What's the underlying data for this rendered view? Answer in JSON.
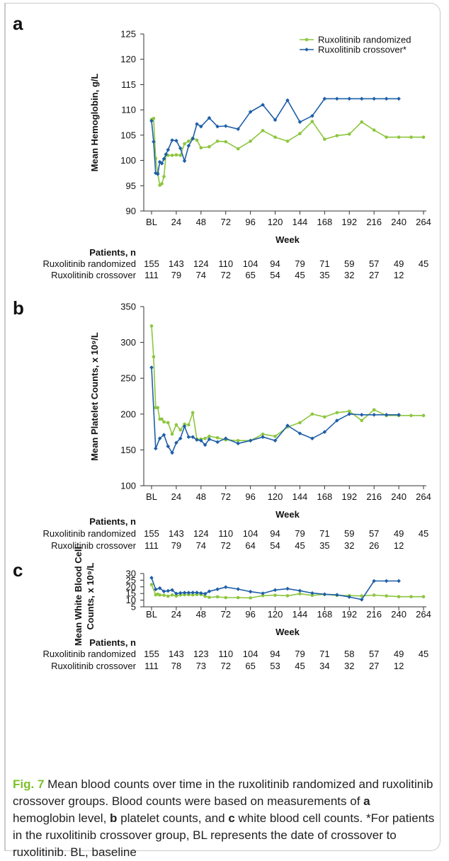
{
  "colors": {
    "randomized": "#8dc63f",
    "crossover": "#1f5fa8"
  },
  "legend": {
    "randomized": "Ruxolitinib randomized",
    "crossover": "Ruxolitinib crossover*"
  },
  "patients_heading": "Patients, n",
  "table_row_labels": [
    "Ruxolitinib randomized",
    "Ruxolitinib crossover"
  ],
  "chart_data": [
    {
      "panel": "a",
      "type": "line",
      "xlabel": "Week",
      "ylabel": "Mean Hemoglobin, g/L",
      "ylim": [
        90,
        125
      ],
      "yticks": [
        90,
        95,
        100,
        105,
        110,
        115,
        120,
        125
      ],
      "xlim": [
        0,
        264
      ],
      "xtick_labels": [
        "BL",
        "24",
        "48",
        "72",
        "96",
        "120",
        "144",
        "168",
        "192",
        "216",
        "240",
        "264"
      ],
      "legend_position": "top-right",
      "series": [
        {
          "name": "Ruxolitinib randomized",
          "x": [
            0,
            2,
            4,
            6,
            8,
            10,
            12,
            14,
            16,
            20,
            24,
            28,
            32,
            36,
            40,
            44,
            48,
            56,
            64,
            72,
            84,
            96,
            108,
            120,
            132,
            144,
            156,
            168,
            180,
            192,
            204,
            216,
            228,
            240,
            252,
            264
          ],
          "y": [
            108.1,
            108.3,
            100.4,
            97.5,
            95.1,
            95.4,
            96.8,
            101.2,
            101.0,
            101.0,
            101.1,
            101.0,
            103.3,
            103.8,
            104.4,
            104.0,
            102.5,
            102.7,
            103.8,
            103.7,
            102.3,
            103.8,
            105.9,
            104.6,
            103.8,
            105.3,
            107.7,
            104.2,
            104.9,
            105.2,
            107.6,
            106.0,
            104.6,
            104.6,
            104.6,
            104.6
          ]
        },
        {
          "name": "Ruxolitinib crossover*",
          "x": [
            0,
            2,
            4,
            6,
            8,
            10,
            12,
            14,
            16,
            20,
            24,
            28,
            32,
            36,
            40,
            44,
            48,
            56,
            64,
            72,
            84,
            96,
            108,
            120,
            132,
            144,
            156,
            168,
            180,
            192,
            204,
            216,
            228,
            240
          ],
          "y": [
            107.8,
            103.7,
            97.5,
            97.3,
            99.7,
            99.4,
            100.3,
            101.2,
            102.1,
            104.0,
            103.9,
            102.4,
            99.9,
            102.9,
            104.3,
            107.2,
            106.7,
            108.4,
            106.7,
            106.8,
            106.2,
            109.6,
            111.0,
            108.0,
            111.9,
            107.6,
            108.8,
            112.2,
            112.2,
            112.2,
            112.2,
            112.2,
            112.2,
            112.2
          ]
        }
      ],
      "patients": {
        "Ruxolitinib randomized": [
          "155",
          "143",
          "124",
          "110",
          "104",
          "94",
          "79",
          "71",
          "59",
          "57",
          "49",
          "45"
        ],
        "Ruxolitinib crossover": [
          "111",
          "79",
          "74",
          "72",
          "65",
          "54",
          "45",
          "35",
          "32",
          "27",
          "12",
          ""
        ]
      }
    },
    {
      "panel": "b",
      "type": "line",
      "xlabel": "Week",
      "ylabel": "Mean Platelet Counts, x 10⁹/L",
      "ylim": [
        100,
        350
      ],
      "yticks": [
        100,
        150,
        200,
        250,
        300,
        350
      ],
      "xlim": [
        0,
        264
      ],
      "xtick_labels": [
        "BL",
        "24",
        "48",
        "72",
        "96",
        "120",
        "144",
        "168",
        "192",
        "216",
        "240",
        "264"
      ],
      "series": [
        {
          "name": "Ruxolitinib randomized",
          "x": [
            0,
            2,
            4,
            6,
            8,
            10,
            12,
            16,
            20,
            24,
            28,
            32,
            36,
            40,
            44,
            48,
            52,
            56,
            64,
            72,
            84,
            96,
            108,
            120,
            132,
            144,
            156,
            168,
            180,
            192,
            204,
            216,
            228,
            240,
            252,
            264
          ],
          "y": [
            323,
            280,
            209,
            209,
            193,
            193,
            189,
            188,
            172,
            185,
            178,
            186,
            185,
            202,
            165,
            165,
            166,
            169,
            167,
            164,
            163,
            163,
            172,
            169,
            182,
            188,
            200,
            196,
            202,
            204,
            191,
            206,
            198,
            198,
            198,
            198
          ]
        },
        {
          "name": "Ruxolitinib crossover*",
          "x": [
            0,
            4,
            8,
            12,
            16,
            20,
            24,
            28,
            32,
            36,
            40,
            44,
            48,
            52,
            56,
            64,
            72,
            84,
            96,
            108,
            120,
            132,
            144,
            156,
            168,
            180,
            192,
            204,
            216,
            228,
            240
          ],
          "y": [
            265,
            152,
            166,
            171,
            155,
            146,
            160,
            166,
            183,
            168,
            168,
            164,
            163,
            157,
            165,
            161,
            166,
            159,
            163,
            168,
            163,
            184,
            173,
            166,
            175,
            191,
            200,
            199,
            199,
            199,
            199
          ]
        }
      ],
      "patients": {
        "Ruxolitinib randomized": [
          "155",
          "143",
          "124",
          "110",
          "104",
          "94",
          "79",
          "71",
          "59",
          "57",
          "49",
          "45"
        ],
        "Ruxolitinib crossover": [
          "111",
          "79",
          "74",
          "72",
          "64",
          "54",
          "45",
          "35",
          "32",
          "26",
          "12",
          ""
        ]
      }
    },
    {
      "panel": "c",
      "type": "line",
      "xlabel": "Week",
      "ylabel": "Mean White Blood Cell Counts, x 10⁹/L",
      "ylim": [
        5,
        30
      ],
      "yticks": [
        5,
        10,
        15,
        20,
        25,
        30
      ],
      "xlim": [
        0,
        264
      ],
      "xtick_labels": [
        "BL",
        "24",
        "48",
        "72",
        "96",
        "120",
        "144",
        "168",
        "192",
        "216",
        "240",
        "264"
      ],
      "series": [
        {
          "name": "Ruxolitinib randomized",
          "x": [
            0,
            4,
            6,
            8,
            12,
            16,
            20,
            24,
            28,
            32,
            36,
            40,
            44,
            48,
            52,
            56,
            64,
            72,
            84,
            96,
            108,
            120,
            132,
            144,
            156,
            168,
            180,
            192,
            204,
            216,
            228,
            240,
            252,
            264
          ],
          "y": [
            21.7,
            14.0,
            14.5,
            13.9,
            13.7,
            13.0,
            13.9,
            13.1,
            13.9,
            14.1,
            14.1,
            14.0,
            14.2,
            14.3,
            12.9,
            12.1,
            12.5,
            11.9,
            11.9,
            11.7,
            13.4,
            13.7,
            13.3,
            14.8,
            13.6,
            14.3,
            13.6,
            13.4,
            13.2,
            13.8,
            13.2,
            12.6,
            12.6,
            12.6
          ]
        },
        {
          "name": "Ruxolitinib crossover*",
          "x": [
            0,
            4,
            8,
            12,
            16,
            20,
            24,
            28,
            32,
            36,
            40,
            44,
            48,
            52,
            56,
            64,
            72,
            84,
            96,
            108,
            120,
            132,
            144,
            156,
            168,
            180,
            192,
            204,
            216,
            228,
            240
          ],
          "y": [
            26.8,
            18.1,
            19.0,
            16.6,
            17.0,
            17.6,
            14.9,
            15.4,
            15.6,
            15.6,
            15.7,
            15.7,
            15.3,
            14.8,
            16.6,
            18.2,
            19.8,
            18.3,
            16.4,
            15.1,
            17.6,
            18.6,
            17.1,
            15.3,
            14.4,
            14.0,
            12.4,
            10.4,
            24.4,
            24.4,
            24.4
          ]
        }
      ],
      "patients": {
        "Ruxolitinib randomized": [
          "155",
          "143",
          "123",
          "110",
          "104",
          "94",
          "79",
          "71",
          "58",
          "57",
          "49",
          "45"
        ],
        "Ruxolitinib crossover": [
          "111",
          "78",
          "73",
          "72",
          "65",
          "53",
          "45",
          "34",
          "32",
          "27",
          "12",
          ""
        ]
      }
    }
  ],
  "caption": {
    "fig_label": "Fig. 7",
    "parts": [
      " Mean blood counts over time in the ruxolitinib randomized and ruxolitinib crossover groups. Blood counts were based on measurements of ",
      "a",
      " hemoglobin level, ",
      "b",
      " platelet counts, and ",
      "c",
      " white blood cell counts. *For patients in the ruxolitinib crossover group, BL represents the date of crossover to ruxolitinib. BL, baseline"
    ]
  }
}
